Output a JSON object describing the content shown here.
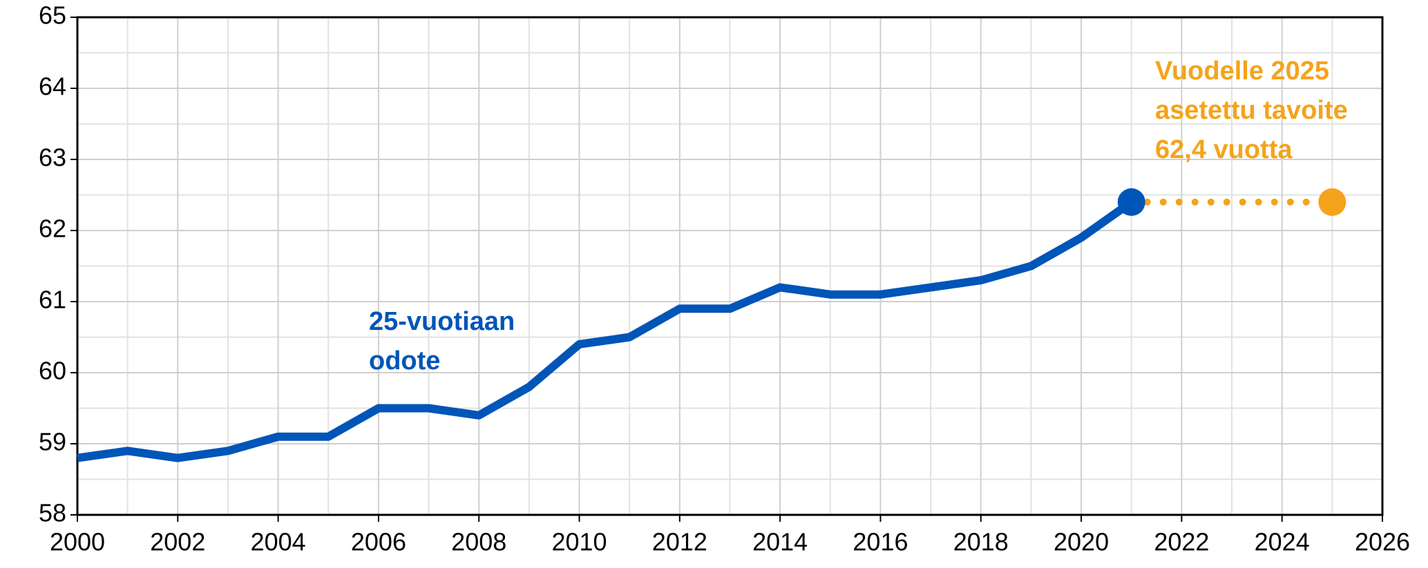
{
  "chart_data": {
    "type": "line",
    "series": [
      {
        "name": "25-vuotiaan odote",
        "color": "#0055b8",
        "style": "solid",
        "x": [
          2000,
          2001,
          2002,
          2003,
          2004,
          2005,
          2006,
          2007,
          2008,
          2009,
          2010,
          2011,
          2012,
          2013,
          2014,
          2015,
          2016,
          2017,
          2018,
          2019,
          2020,
          2021
        ],
        "values": [
          58.8,
          58.9,
          58.8,
          58.9,
          59.1,
          59.1,
          59.5,
          59.5,
          59.4,
          59.8,
          60.4,
          60.5,
          60.9,
          60.9,
          61.2,
          61.1,
          61.1,
          61.2,
          61.3,
          61.5,
          61.9,
          62.4
        ]
      },
      {
        "name": "Vuodelle 2025 asetettu tavoite",
        "color": "#f5a31a",
        "style": "dotted",
        "x": [
          2021,
          2025
        ],
        "values": [
          62.4,
          62.4
        ]
      }
    ],
    "annotations": [
      {
        "lines": [
          "25-vuotiaan",
          "odote"
        ],
        "color": "#0055b8"
      },
      {
        "lines": [
          "Vuodelle 2025",
          "asetettu tavoite",
          "62,4 vuotta"
        ],
        "color": "#f5a31a"
      }
    ],
    "xlim": [
      2000,
      2026
    ],
    "xticks": [
      2000,
      2002,
      2004,
      2006,
      2008,
      2010,
      2012,
      2014,
      2016,
      2018,
      2020,
      2022,
      2024,
      2026
    ],
    "ylim": [
      58,
      65
    ],
    "yticks": [
      58,
      59,
      60,
      61,
      62,
      63,
      64,
      65
    ],
    "grid": true
  }
}
